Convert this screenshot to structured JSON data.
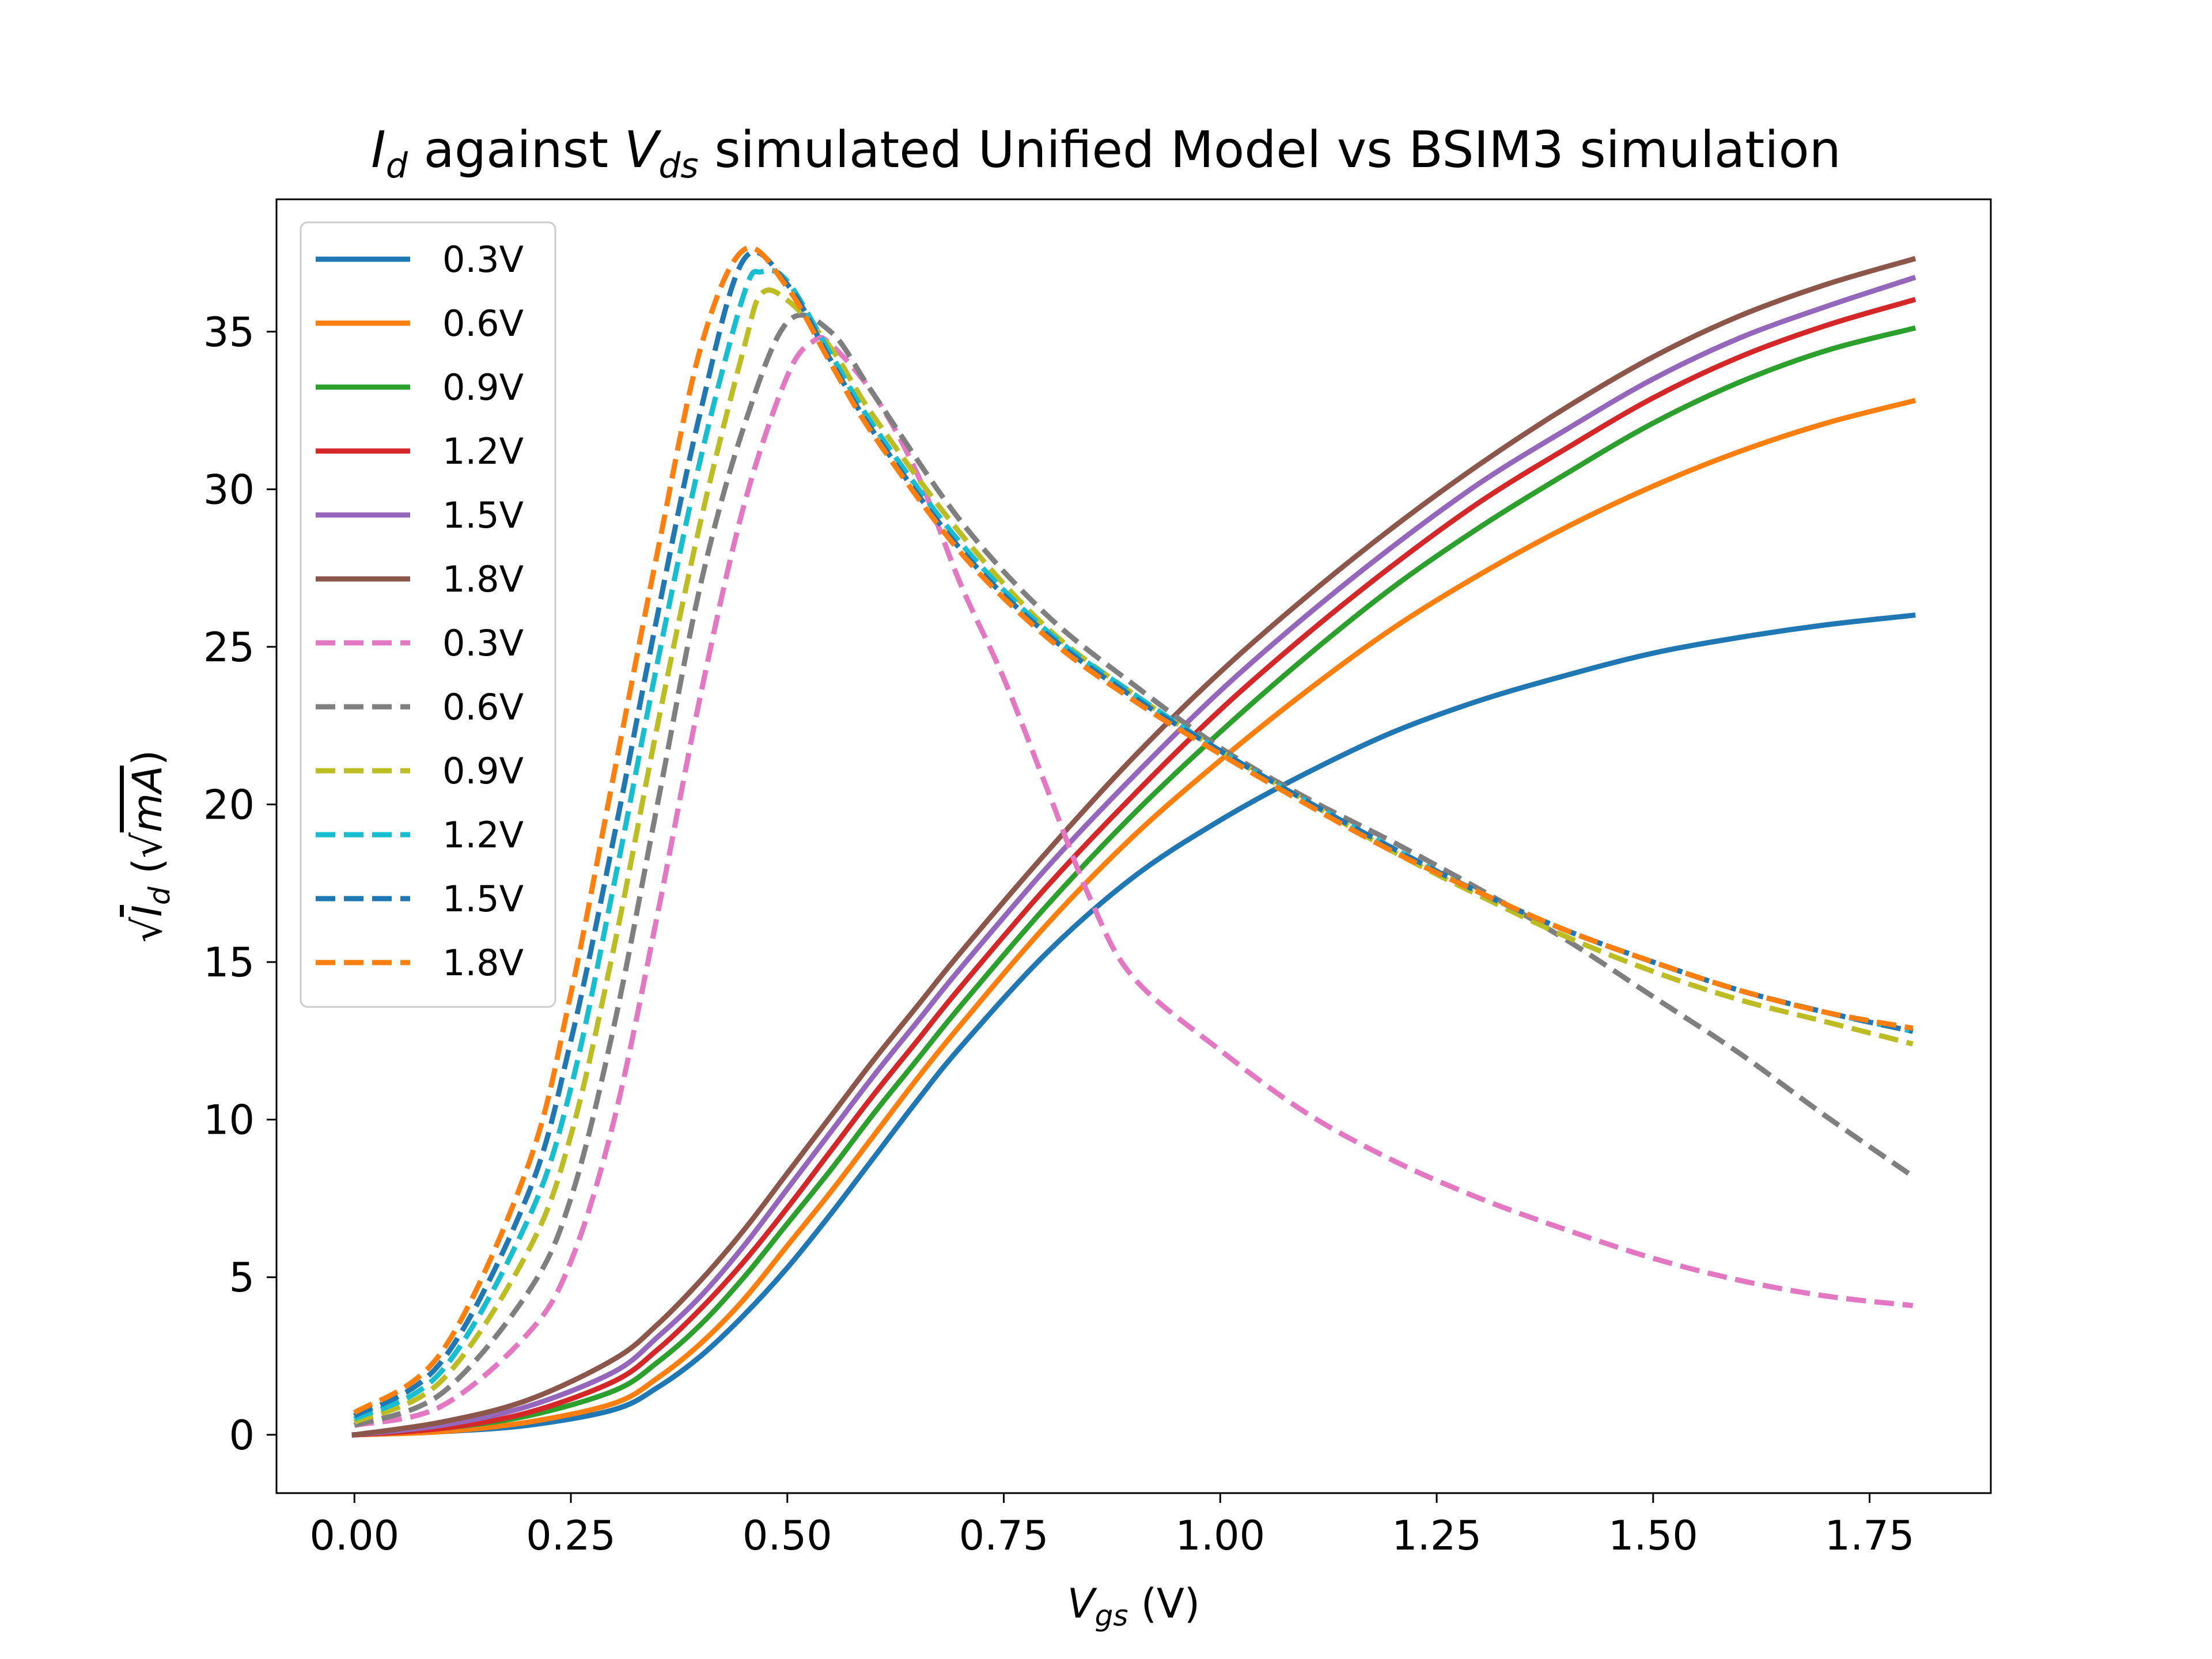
{
  "chart_data": {
    "type": "line",
    "title": {
      "I": "I",
      "d": "d",
      "mid": " against ",
      "V": "V",
      "ds": "ds",
      "rest": " simulated Unified Model vs BSIM3 simulation"
    },
    "xlabel": {
      "V": "V",
      "sub": "gs",
      "unit": " (V)"
    },
    "ylabel": {
      "root": "√",
      "I": "I",
      "sub": "d",
      "open": " (√",
      "mA": "mA",
      "close": ")"
    },
    "xlim": [
      -0.09,
      1.89
    ],
    "ylim": [
      -1.85,
      39.2
    ],
    "xticks": [
      {
        "value": 0.0,
        "label": "0.00"
      },
      {
        "value": 0.25,
        "label": "0.25"
      },
      {
        "value": 0.5,
        "label": "0.50"
      },
      {
        "value": 0.75,
        "label": "0.75"
      },
      {
        "value": 1.0,
        "label": "1.00"
      },
      {
        "value": 1.25,
        "label": "1.25"
      },
      {
        "value": 1.5,
        "label": "1.50"
      },
      {
        "value": 1.75,
        "label": "1.75"
      }
    ],
    "yticks": [
      {
        "value": 0,
        "label": "0"
      },
      {
        "value": 5,
        "label": "5"
      },
      {
        "value": 10,
        "label": "10"
      },
      {
        "value": 15,
        "label": "15"
      },
      {
        "value": 20,
        "label": "20"
      },
      {
        "value": 25,
        "label": "25"
      },
      {
        "value": 30,
        "label": "30"
      },
      {
        "value": 35,
        "label": "35"
      }
    ],
    "grid": false,
    "legend_position": "top-left",
    "series": [
      {
        "name": "0.3V",
        "color": "#1f77b4",
        "dash": "solid",
        "x": [
          0,
          0.1,
          0.2,
          0.3,
          0.35,
          0.4,
          0.45,
          0.5,
          0.55,
          0.6,
          0.65,
          0.7,
          0.8,
          0.9,
          1.0,
          1.1,
          1.2,
          1.3,
          1.4,
          1.5,
          1.6,
          1.7,
          1.8
        ],
        "y": [
          0,
          0.1,
          0.3,
          0.8,
          1.5,
          2.5,
          3.8,
          5.3,
          7.0,
          8.8,
          10.6,
          12.3,
          15.3,
          17.7,
          19.5,
          21.0,
          22.3,
          23.3,
          24.1,
          24.8,
          25.3,
          25.7,
          26.0
        ]
      },
      {
        "name": "0.6V",
        "color": "#ff7f0e",
        "dash": "solid",
        "x": [
          0,
          0.1,
          0.2,
          0.3,
          0.35,
          0.4,
          0.45,
          0.5,
          0.55,
          0.6,
          0.65,
          0.7,
          0.8,
          0.9,
          1.0,
          1.1,
          1.2,
          1.3,
          1.4,
          1.5,
          1.6,
          1.7,
          1.8
        ],
        "y": [
          0,
          0.1,
          0.4,
          1.0,
          1.8,
          2.9,
          4.3,
          6.0,
          7.7,
          9.5,
          11.3,
          13.0,
          16.2,
          19.0,
          21.4,
          23.6,
          25.6,
          27.3,
          28.8,
          30.1,
          31.2,
          32.1,
          32.8
        ]
      },
      {
        "name": "0.9V",
        "color": "#2ca02c",
        "dash": "solid",
        "x": [
          0,
          0.1,
          0.2,
          0.3,
          0.35,
          0.4,
          0.45,
          0.5,
          0.55,
          0.6,
          0.65,
          0.7,
          0.8,
          0.9,
          1.0,
          1.1,
          1.2,
          1.3,
          1.4,
          1.5,
          1.6,
          1.7,
          1.8
        ],
        "y": [
          0,
          0.2,
          0.6,
          1.4,
          2.3,
          3.5,
          5.0,
          6.7,
          8.4,
          10.2,
          11.9,
          13.6,
          16.8,
          19.7,
          22.3,
          24.7,
          26.9,
          28.8,
          30.5,
          32.1,
          33.4,
          34.4,
          35.1
        ]
      },
      {
        "name": "1.2V",
        "color": "#d62728",
        "dash": "solid",
        "x": [
          0,
          0.1,
          0.2,
          0.3,
          0.35,
          0.4,
          0.45,
          0.5,
          0.55,
          0.6,
          0.65,
          0.7,
          0.8,
          0.9,
          1.0,
          1.1,
          1.2,
          1.3,
          1.4,
          1.5,
          1.6,
          1.7,
          1.8
        ],
        "y": [
          0,
          0.2,
          0.7,
          1.7,
          2.7,
          4.0,
          5.5,
          7.2,
          9.0,
          10.8,
          12.5,
          14.2,
          17.4,
          20.3,
          23.0,
          25.4,
          27.6,
          29.6,
          31.3,
          32.9,
          34.2,
          35.2,
          36.0
        ]
      },
      {
        "name": "1.5V",
        "color": "#9467bd",
        "dash": "solid",
        "x": [
          0,
          0.1,
          0.2,
          0.3,
          0.35,
          0.4,
          0.45,
          0.5,
          0.55,
          0.6,
          0.65,
          0.7,
          0.8,
          0.9,
          1.0,
          1.1,
          1.2,
          1.3,
          1.4,
          1.5,
          1.6,
          1.7,
          1.8
        ],
        "y": [
          0,
          0.3,
          0.9,
          2.0,
          3.1,
          4.4,
          6.0,
          7.8,
          9.6,
          11.4,
          13.1,
          14.8,
          18.0,
          20.9,
          23.6,
          26.0,
          28.2,
          30.2,
          31.9,
          33.5,
          34.8,
          35.8,
          36.7
        ]
      },
      {
        "name": "1.8V",
        "color": "#8c564b",
        "dash": "solid",
        "x": [
          0,
          0.1,
          0.2,
          0.3,
          0.35,
          0.4,
          0.45,
          0.5,
          0.55,
          0.6,
          0.65,
          0.7,
          0.8,
          0.9,
          1.0,
          1.1,
          1.2,
          1.3,
          1.4,
          1.5,
          1.6,
          1.7,
          1.8
        ],
        "y": [
          0,
          0.4,
          1.1,
          2.4,
          3.5,
          4.9,
          6.5,
          8.3,
          10.1,
          11.9,
          13.6,
          15.3,
          18.5,
          21.5,
          24.2,
          26.6,
          28.8,
          30.8,
          32.6,
          34.2,
          35.5,
          36.5,
          37.3
        ]
      },
      {
        "name": "0.3V",
        "color": "#e377c2",
        "dash": "dashed",
        "x": [
          0,
          0.1,
          0.2,
          0.25,
          0.3,
          0.35,
          0.4,
          0.45,
          0.5,
          0.53,
          0.55,
          0.6,
          0.65,
          0.7,
          0.75,
          0.8,
          0.85,
          0.9,
          1.0,
          1.1,
          1.2,
          1.3,
          1.4,
          1.5,
          1.6,
          1.7,
          1.8
        ],
        "y": [
          0.3,
          0.9,
          3.2,
          5.5,
          10.0,
          16.5,
          23.5,
          29.5,
          33.6,
          34.7,
          34.6,
          33.0,
          30.5,
          27.0,
          24.0,
          20.5,
          17.0,
          14.5,
          12.2,
          10.2,
          8.7,
          7.5,
          6.5,
          5.6,
          4.9,
          4.4,
          4.1
        ]
      },
      {
        "name": "0.6V",
        "color": "#7f7f7f",
        "dash": "dashed",
        "x": [
          0,
          0.1,
          0.2,
          0.25,
          0.3,
          0.35,
          0.4,
          0.45,
          0.5,
          0.55,
          0.6,
          0.7,
          0.8,
          0.9,
          1.0,
          1.1,
          1.2,
          1.3,
          1.4,
          1.5,
          1.6,
          1.7,
          1.8
        ],
        "y": [
          0.3,
          1.3,
          4.5,
          7.5,
          13.0,
          20.0,
          27.0,
          32.0,
          35.3,
          35.0,
          33.0,
          29.0,
          26.0,
          23.8,
          21.8,
          20.2,
          18.8,
          17.3,
          15.7,
          13.9,
          12.1,
          10.1,
          8.2
        ]
      },
      {
        "name": "0.9V",
        "color": "#bcbd22",
        "dash": "dashed",
        "x": [
          0,
          0.1,
          0.2,
          0.25,
          0.3,
          0.35,
          0.4,
          0.45,
          0.47,
          0.5,
          0.55,
          0.6,
          0.7,
          0.8,
          0.9,
          1.0,
          1.1,
          1.2,
          1.3,
          1.4,
          1.5,
          1.6,
          1.7,
          1.8
        ],
        "y": [
          0.4,
          1.7,
          5.8,
          9.5,
          15.5,
          22.5,
          29.0,
          34.5,
          36.2,
          36.0,
          34.5,
          32.3,
          28.6,
          25.6,
          23.5,
          21.7,
          20.1,
          18.5,
          17.1,
          15.8,
          14.7,
          13.8,
          13.1,
          12.4
        ]
      },
      {
        "name": "1.2V",
        "color": "#17becf",
        "dash": "dashed",
        "x": [
          0,
          0.1,
          0.2,
          0.25,
          0.3,
          0.35,
          0.4,
          0.45,
          0.47,
          0.5,
          0.55,
          0.6,
          0.7,
          0.8,
          0.9,
          1.0,
          1.1,
          1.2,
          1.3,
          1.4,
          1.5,
          1.6,
          1.7,
          1.8
        ],
        "y": [
          0.5,
          2.0,
          6.8,
          11.0,
          17.5,
          24.5,
          31.0,
          36.2,
          36.9,
          36.6,
          34.3,
          32.0,
          28.3,
          25.5,
          23.5,
          21.7,
          20.1,
          18.6,
          17.2,
          16.0,
          15.0,
          14.1,
          13.4,
          12.8
        ]
      },
      {
        "name": "1.5V",
        "color": "#1f77b4",
        "dash": "dashed",
        "x": [
          0,
          0.1,
          0.2,
          0.25,
          0.3,
          0.35,
          0.4,
          0.45,
          0.5,
          0.55,
          0.6,
          0.7,
          0.8,
          0.9,
          1.0,
          1.1,
          1.2,
          1.3,
          1.4,
          1.5,
          1.6,
          1.7,
          1.8
        ],
        "y": [
          0.6,
          2.3,
          7.6,
          12.5,
          19.0,
          26.0,
          32.5,
          37.3,
          36.5,
          34.1,
          31.8,
          28.1,
          25.4,
          23.4,
          21.7,
          20.1,
          18.6,
          17.2,
          16.0,
          15.0,
          14.1,
          13.4,
          12.8
        ]
      },
      {
        "name": "1.8V",
        "color": "#ff7f0e",
        "dash": "dashed",
        "x": [
          0,
          0.1,
          0.2,
          0.25,
          0.3,
          0.35,
          0.4,
          0.45,
          0.5,
          0.55,
          0.6,
          0.7,
          0.8,
          0.9,
          1.0,
          1.1,
          1.2,
          1.3,
          1.4,
          1.5,
          1.6,
          1.7,
          1.8
        ],
        "y": [
          0.7,
          2.6,
          8.5,
          14.0,
          21.0,
          28.0,
          34.5,
          37.6,
          36.4,
          34.0,
          31.7,
          28.0,
          25.3,
          23.3,
          21.6,
          20.0,
          18.5,
          17.2,
          16.0,
          15.0,
          14.1,
          13.4,
          12.9
        ]
      }
    ]
  }
}
